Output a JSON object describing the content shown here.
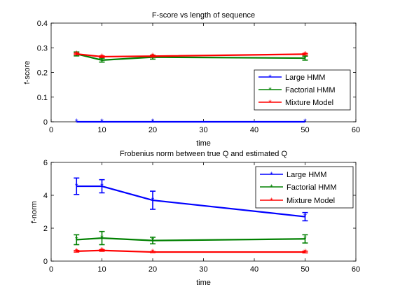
{
  "chart_data": [
    {
      "type": "line",
      "title": "F-score vs length of sequence",
      "xlabel": "time",
      "ylabel": "f-score",
      "xlim": [
        0,
        60
      ],
      "ylim": [
        0,
        0.4
      ],
      "xticks": [
        0,
        10,
        20,
        30,
        40,
        50,
        60
      ],
      "yticks": [
        0,
        0.1,
        0.2,
        0.3,
        0.4
      ],
      "x": [
        5,
        10,
        20,
        50
      ],
      "legend_position": "right",
      "grid": false,
      "series": [
        {
          "name": "Large HMM",
          "color": "#0000ff",
          "marker": "asterisk",
          "values": [
            0,
            0,
            0,
            0
          ],
          "errors": [
            0,
            0,
            0,
            0
          ]
        },
        {
          "name": "Factorial HMM",
          "color": "#008000",
          "marker": "asterisk",
          "values": [
            0.275,
            0.25,
            0.262,
            0.258
          ],
          "errors": [
            0.008,
            0.008,
            0.008,
            0.008
          ]
        },
        {
          "name": "Mixture Model",
          "color": "#ff0000",
          "marker": "asterisk",
          "values": [
            0.275,
            0.264,
            0.266,
            0.274
          ],
          "errors": [
            0.003,
            0.003,
            0.003,
            0.003
          ]
        }
      ]
    },
    {
      "type": "line",
      "title": "Frobenius norm between true Q and estimated Q",
      "xlabel": "time",
      "ylabel": "f-norm",
      "xlim": [
        0,
        60
      ],
      "ylim": [
        0,
        6
      ],
      "xticks": [
        0,
        10,
        20,
        30,
        40,
        50,
        60
      ],
      "yticks": [
        0,
        2,
        4,
        6
      ],
      "x": [
        5,
        10,
        20,
        50
      ],
      "legend_position": "top-right",
      "grid": false,
      "series": [
        {
          "name": "Large HMM",
          "color": "#0000ff",
          "marker": "asterisk",
          "values": [
            4.55,
            4.55,
            3.7,
            2.7
          ],
          "errors": [
            0.5,
            0.4,
            0.55,
            0.25
          ]
        },
        {
          "name": "Factorial HMM",
          "color": "#008000",
          "marker": "asterisk",
          "values": [
            1.3,
            1.4,
            1.25,
            1.35
          ],
          "errors": [
            0.3,
            0.4,
            0.2,
            0.25
          ]
        },
        {
          "name": "Mixture Model",
          "color": "#ff0000",
          "marker": "asterisk",
          "values": [
            0.6,
            0.65,
            0.55,
            0.55
          ],
          "errors": [
            0.05,
            0.05,
            0.03,
            0.05
          ]
        }
      ]
    }
  ]
}
